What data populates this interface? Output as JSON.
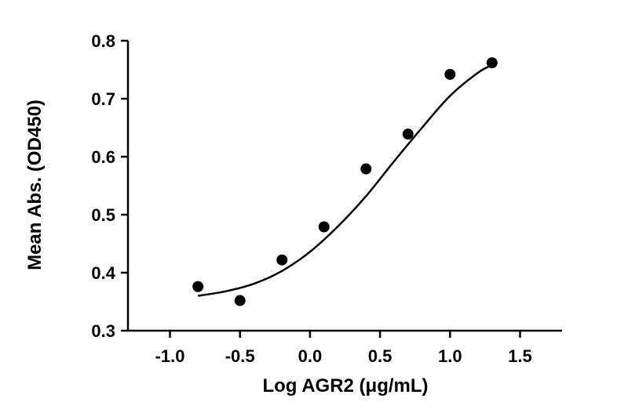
{
  "chart_data": {
    "type": "scatter",
    "title": "",
    "xlabel": "Log AGR2 (μg/mL)",
    "ylabel": "Mean  Abs. (OD450)",
    "xlim": [
      -1.3,
      1.8
    ],
    "ylim": [
      0.3,
      0.8
    ],
    "xticks": [
      -1.0,
      -0.5,
      0.0,
      0.5,
      1.0,
      1.5
    ],
    "xtick_labels": [
      "-1.0",
      "-0.5",
      "0.0",
      "0.5",
      "1.0",
      "1.5"
    ],
    "yticks": [
      0.3,
      0.4,
      0.5,
      0.6,
      0.7,
      0.8
    ],
    "ytick_labels": [
      "0.3",
      "0.4",
      "0.5",
      "0.6",
      "0.7",
      "0.8"
    ],
    "grid": false,
    "series": [
      {
        "type": "scatter",
        "x": [
          -0.8,
          -0.5,
          -0.2,
          0.1,
          0.4,
          0.7,
          1.0,
          1.3
        ],
        "y": [
          0.376,
          0.352,
          0.422,
          0.479,
          0.579,
          0.639,
          0.742,
          0.762
        ],
        "color": "#000000"
      },
      {
        "type": "line",
        "x": [
          -0.8,
          -0.6,
          -0.4,
          -0.2,
          0.0,
          0.2,
          0.4,
          0.6,
          0.8,
          1.0,
          1.2,
          1.3
        ],
        "y": [
          0.36,
          0.368,
          0.381,
          0.403,
          0.436,
          0.48,
          0.532,
          0.592,
          0.65,
          0.705,
          0.745,
          0.758
        ],
        "color": "#000000"
      }
    ]
  }
}
